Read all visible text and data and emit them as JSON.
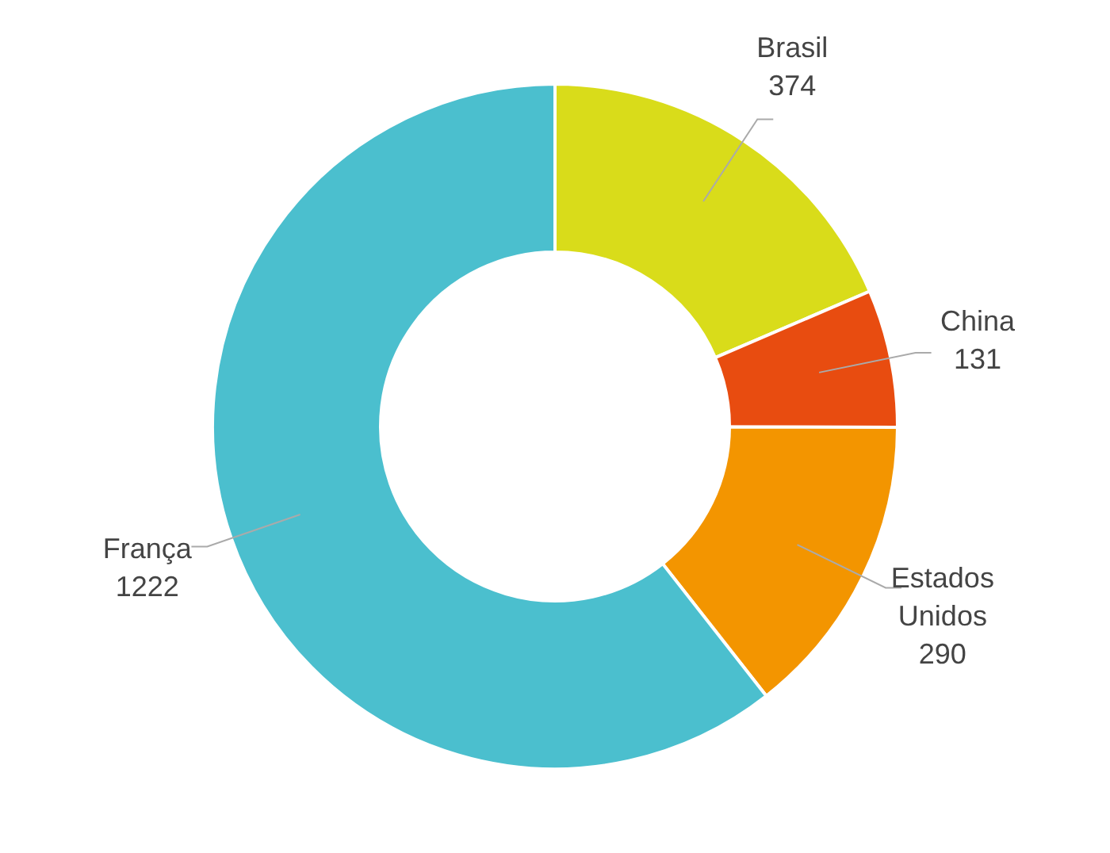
{
  "chart_data": {
    "type": "donut",
    "categories": [
      "Brasil",
      "China",
      "Estados Unidos",
      "França"
    ],
    "values": [
      374,
      131,
      290,
      1222
    ],
    "colors": [
      "#d9dc1a",
      "#e84c10",
      "#f39500",
      "#4bbfce"
    ],
    "data_labels": true
  }
}
